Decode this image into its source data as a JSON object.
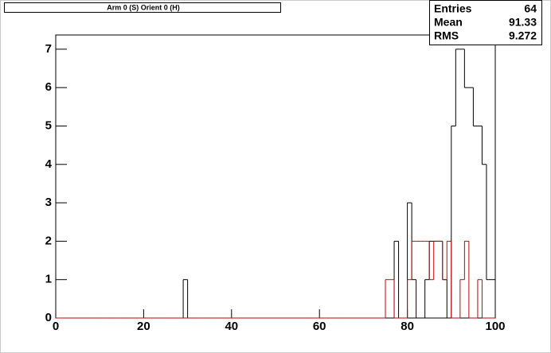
{
  "chart_data": {
    "type": "histogram",
    "title": "Arm 0 (S) Orient 0 (H)",
    "stats": {
      "labels": [
        "Entries",
        "Mean",
        "RMS"
      ],
      "values": [
        64,
        91.33,
        9.272
      ]
    },
    "bins": [
      0,
      1,
      2,
      3,
      4,
      5,
      6,
      7,
      8,
      9,
      10,
      11,
      12,
      13,
      14,
      15,
      16,
      17,
      18,
      19,
      20,
      21,
      22,
      23,
      24,
      25,
      26,
      27,
      28,
      29,
      30,
      31,
      32,
      33,
      34,
      35,
      36,
      37,
      38,
      39,
      40,
      41,
      42,
      43,
      44,
      45,
      46,
      47,
      48,
      49,
      50,
      51,
      52,
      53,
      54,
      55,
      56,
      57,
      58,
      59,
      60,
      61,
      62,
      63,
      64,
      65,
      66,
      67,
      68,
      69,
      70,
      71,
      72,
      73,
      74,
      75,
      76,
      77,
      78,
      79,
      80,
      81,
      82,
      83,
      84,
      85,
      86,
      87,
      88,
      89,
      90,
      91,
      92,
      93,
      94,
      95,
      96,
      97,
      98,
      99,
      100
    ],
    "series": [
      {
        "color": "#000000",
        "values": [
          0,
          0,
          0,
          0,
          0,
          0,
          0,
          0,
          0,
          0,
          0,
          0,
          0,
          0,
          0,
          0,
          0,
          0,
          0,
          0,
          0,
          0,
          0,
          0,
          0,
          0,
          0,
          0,
          0,
          1,
          0,
          0,
          0,
          0,
          0,
          0,
          0,
          0,
          0,
          0,
          0,
          0,
          0,
          0,
          0,
          0,
          0,
          0,
          0,
          0,
          0,
          0,
          0,
          0,
          0,
          0,
          0,
          0,
          0,
          0,
          0,
          0,
          0,
          0,
          0,
          0,
          0,
          0,
          0,
          0,
          0,
          0,
          0,
          0,
          0,
          0,
          0,
          2,
          0,
          0,
          3,
          1,
          0,
          0,
          1,
          2,
          2,
          2,
          1,
          0,
          5,
          7,
          7,
          6,
          6,
          5,
          5,
          4,
          1,
          1
        ]
      },
      {
        "color": "#cc0000",
        "values": [
          0,
          0,
          0,
          0,
          0,
          0,
          0,
          0,
          0,
          0,
          0,
          0,
          0,
          0,
          0,
          0,
          0,
          0,
          0,
          0,
          0,
          0,
          0,
          0,
          0,
          0,
          0,
          0,
          0,
          0,
          0,
          0,
          0,
          0,
          0,
          0,
          0,
          0,
          0,
          0,
          0,
          0,
          0,
          0,
          0,
          0,
          0,
          0,
          0,
          0,
          0,
          0,
          0,
          0,
          0,
          0,
          0,
          0,
          0,
          0,
          0,
          0,
          0,
          0,
          0,
          0,
          0,
          0,
          0,
          0,
          0,
          0,
          0,
          0,
          0,
          1,
          1,
          0,
          0,
          0,
          1,
          2,
          2,
          2,
          2,
          1,
          2,
          2,
          1,
          2,
          0,
          0,
          1,
          2,
          0,
          0,
          1,
          0,
          0,
          0
        ]
      }
    ],
    "xlim": [
      0,
      100
    ],
    "xticks": [
      0,
      20,
      40,
      60,
      80,
      100
    ],
    "ylim": [
      0,
      7.37
    ],
    "yticks": [
      0,
      1,
      2,
      3,
      4,
      5,
      6,
      7
    ]
  }
}
